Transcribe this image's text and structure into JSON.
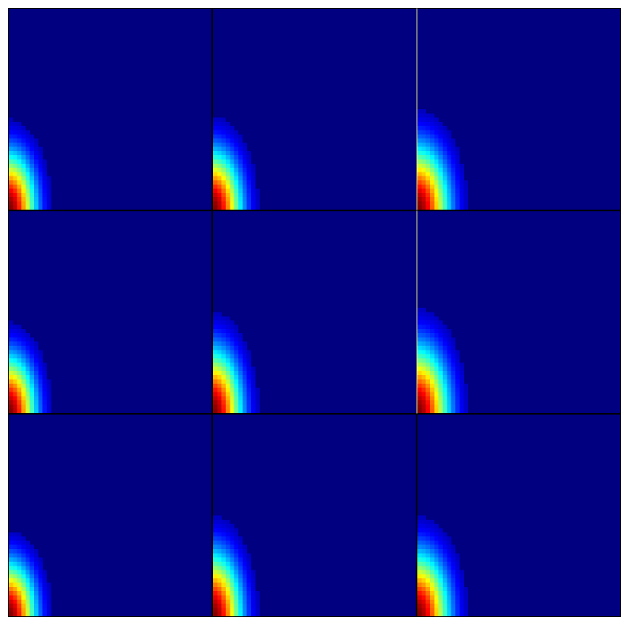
{
  "chart_data": {
    "type": "heatmap",
    "layout": {
      "rows": 3,
      "cols": 3
    },
    "title": "",
    "xlabel": "",
    "ylabel": "",
    "colormap": "jet",
    "grid": false,
    "axes_ticks": false,
    "resolution": {
      "nx": 48,
      "ny": 48
    },
    "panels": [
      {
        "id": 1,
        "row": 0,
        "col": 0,
        "sx": 0.09,
        "sy": 0.19
      },
      {
        "id": 2,
        "row": 0,
        "col": 1,
        "sx": 0.095,
        "sy": 0.195
      },
      {
        "id": 3,
        "row": 0,
        "col": 2,
        "sx": 0.105,
        "sy": 0.21
      },
      {
        "id": 4,
        "row": 1,
        "col": 0,
        "sx": 0.09,
        "sy": 0.19
      },
      {
        "id": 5,
        "row": 1,
        "col": 1,
        "sx": 0.095,
        "sy": 0.21
      },
      {
        "id": 6,
        "row": 1,
        "col": 2,
        "sx": 0.105,
        "sy": 0.22
      },
      {
        "id": 7,
        "row": 2,
        "col": 0,
        "sx": 0.09,
        "sy": 0.18
      },
      {
        "id": 8,
        "row": 2,
        "col": 1,
        "sx": 0.095,
        "sy": 0.21
      },
      {
        "id": 9,
        "row": 2,
        "col": 2,
        "sx": 0.105,
        "sy": 0.21
      }
    ]
  }
}
